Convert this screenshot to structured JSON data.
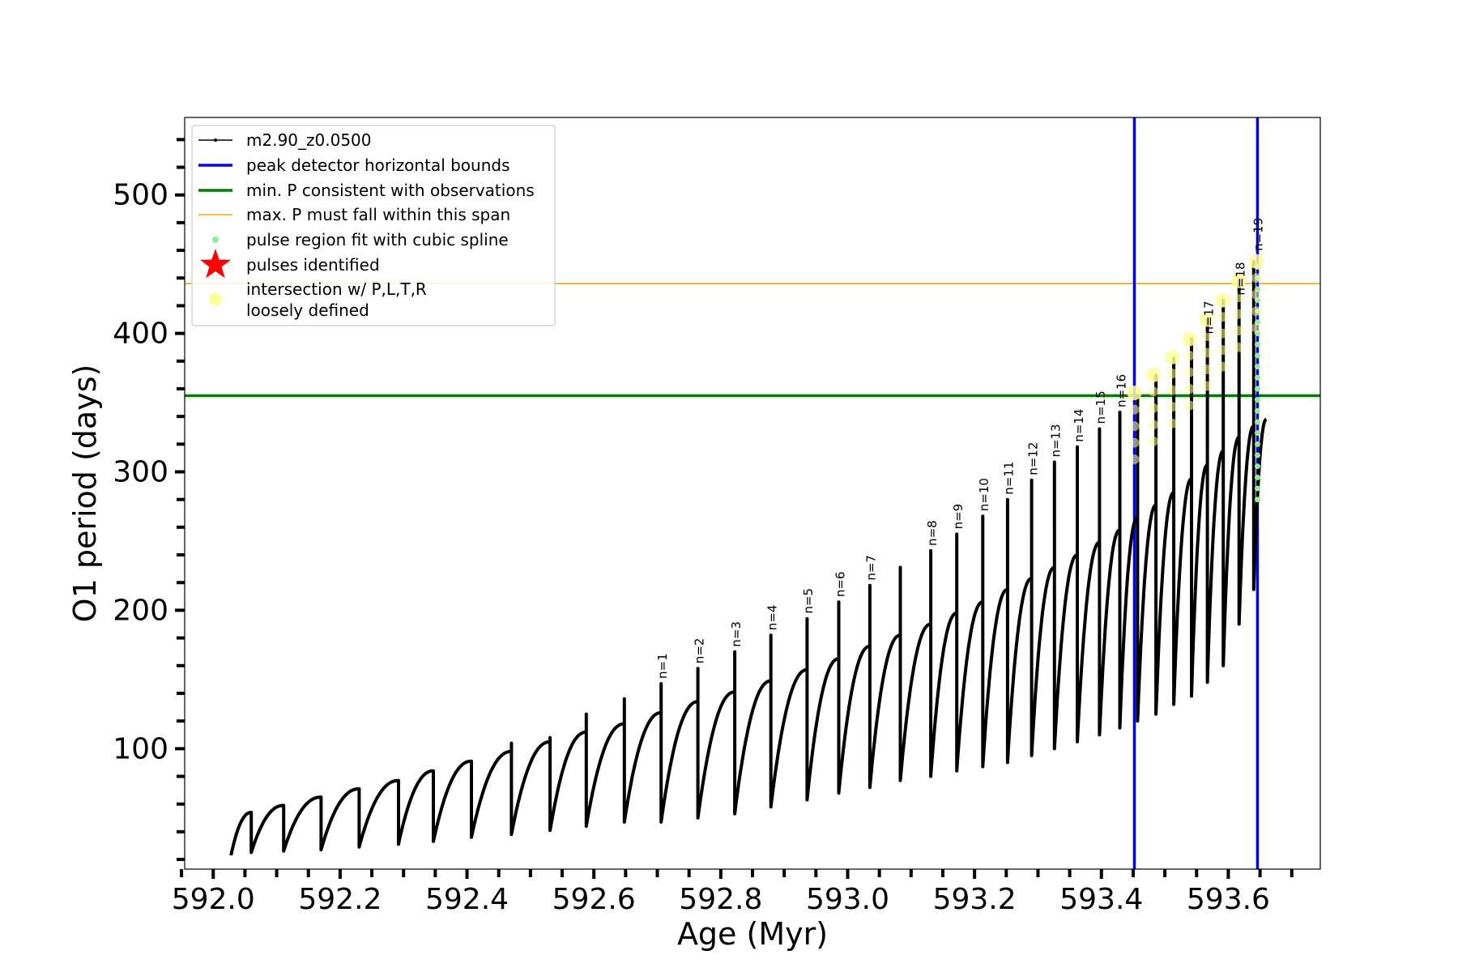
{
  "chart_data": {
    "type": "line",
    "title": "",
    "xlabel": "Age (Myr)",
    "ylabel": "O1 period (days)",
    "xlim": [
      591.955,
      593.745
    ],
    "ylim": [
      13,
      556
    ],
    "x_ticks": [
      592.0,
      592.2,
      592.4,
      592.6,
      592.8,
      593.0,
      593.2,
      593.4,
      593.6
    ],
    "x_tick_labels": [
      "592.0",
      "592.2",
      "592.4",
      "592.6",
      "592.8",
      "593.0",
      "593.2",
      "593.4",
      "593.6"
    ],
    "x_minor_ticks": [
      591.95,
      592.05,
      592.1,
      592.15,
      592.25,
      592.3,
      592.35,
      592.45,
      592.5,
      592.55,
      592.65,
      592.7,
      592.75,
      592.85,
      592.9,
      592.95,
      593.05,
      593.1,
      593.15,
      593.25,
      593.3,
      593.35,
      593.45,
      593.5,
      593.55,
      593.65,
      593.7
    ],
    "y_ticks": [
      100,
      200,
      300,
      400,
      500
    ],
    "y_tick_labels": [
      "100",
      "200",
      "300",
      "400",
      "500"
    ],
    "y_minor_ticks": [
      20,
      40,
      60,
      80,
      120,
      140,
      160,
      180,
      220,
      240,
      260,
      280,
      320,
      340,
      360,
      380,
      420,
      440,
      460,
      480,
      520,
      540
    ],
    "legend_position": "upper-left",
    "legend": [
      {
        "label": "m2.90_z0.0500",
        "kind": "line-marker",
        "color": "#000000"
      },
      {
        "label": "peak detector horizontal bounds",
        "kind": "line",
        "color": "#0000ff"
      },
      {
        "label": "min. P consistent with observations",
        "kind": "line",
        "color": "#008000"
      },
      {
        "label": "max. P must fall within this span",
        "kind": "line",
        "color": "#ffa500"
      },
      {
        "label": "pulse region fit with cubic spline",
        "kind": "dot",
        "color": "#90ee90"
      },
      {
        "label": "pulses identified",
        "kind": "star",
        "color": "#ff0000"
      },
      {
        "label": "intersection w/ P,L,T,R",
        "label2": "loosely defined",
        "kind": "circle",
        "color": "#ffff99"
      }
    ],
    "hlines": [
      {
        "name": "min. P consistent with observations",
        "y": 355,
        "color": "#008000"
      },
      {
        "name": "max. P must fall within this span",
        "y": 436,
        "color": "#ffa500"
      }
    ],
    "vlines": [
      {
        "name": "peak detector horizontal bounds",
        "x": 593.452,
        "color": "#0000ff"
      },
      {
        "name": "peak detector horizontal bounds",
        "x": 593.646,
        "color": "#0000ff"
      }
    ],
    "series": [
      {
        "name": "m2.90_z0.0500",
        "color": "#000000",
        "start": [
          592.028,
          23
        ],
        "cycles": [
          {
            "x_start": 592.028,
            "x_end": 592.06,
            "p_start": 23,
            "p_end": 54,
            "spike": 54
          },
          {
            "x_start": 592.06,
            "x_end": 592.111,
            "p_start": 25,
            "p_end": 59,
            "spike": 59
          },
          {
            "x_start": 592.111,
            "x_end": 592.17,
            "p_start": 26,
            "p_end": 65,
            "spike": 65
          },
          {
            "x_start": 592.17,
            "x_end": 592.23,
            "p_start": 27,
            "p_end": 71,
            "spike": 71
          },
          {
            "x_start": 592.23,
            "x_end": 592.292,
            "p_start": 29,
            "p_end": 77,
            "spike": 77
          },
          {
            "x_start": 592.292,
            "x_end": 592.347,
            "p_start": 31,
            "p_end": 84,
            "spike": 84
          },
          {
            "x_start": 592.347,
            "x_end": 592.407,
            "p_start": 33,
            "p_end": 91,
            "spike": 91
          },
          {
            "x_start": 592.407,
            "x_end": 592.47,
            "p_start": 36,
            "p_end": 98,
            "spike": 104
          },
          {
            "x_start": 592.47,
            "x_end": 592.531,
            "p_start": 38,
            "p_end": 105,
            "spike": 108
          },
          {
            "x_start": 592.531,
            "x_end": 592.588,
            "p_start": 41,
            "p_end": 112,
            "spike": 125
          },
          {
            "x_start": 592.588,
            "x_end": 592.648,
            "p_start": 44,
            "p_end": 118,
            "spike": 136
          },
          {
            "x_start": 592.648,
            "x_end": 592.706,
            "p_start": 47,
            "p_end": 126,
            "spike": 147
          },
          {
            "x_start": 592.706,
            "x_end": 592.764,
            "p_start": 47,
            "p_end": 134,
            "spike": 158
          },
          {
            "x_start": 592.764,
            "x_end": 592.822,
            "p_start": 50,
            "p_end": 141,
            "spike": 170
          },
          {
            "x_start": 592.822,
            "x_end": 592.879,
            "p_start": 53,
            "p_end": 149,
            "spike": 182
          },
          {
            "x_start": 592.879,
            "x_end": 592.936,
            "p_start": 58,
            "p_end": 157,
            "spike": 194
          },
          {
            "x_start": 592.936,
            "x_end": 592.986,
            "p_start": 63,
            "p_end": 165,
            "spike": 206
          },
          {
            "x_start": 592.986,
            "x_end": 593.035,
            "p_start": 68,
            "p_end": 174,
            "spike": 218
          },
          {
            "x_start": 593.035,
            "x_end": 593.083,
            "p_start": 72,
            "p_end": 182,
            "spike": 231
          },
          {
            "x_start": 593.083,
            "x_end": 593.131,
            "p_start": 77,
            "p_end": 190,
            "spike": 243
          },
          {
            "x_start": 593.131,
            "x_end": 593.172,
            "p_start": 80,
            "p_end": 198,
            "spike": 255
          },
          {
            "x_start": 593.172,
            "x_end": 593.213,
            "p_start": 84,
            "p_end": 206,
            "spike": 268
          },
          {
            "x_start": 593.213,
            "x_end": 593.252,
            "p_start": 87,
            "p_end": 215,
            "spike": 280
          },
          {
            "x_start": 593.252,
            "x_end": 593.29,
            "p_start": 90,
            "p_end": 223,
            "spike": 294
          },
          {
            "x_start": 593.29,
            "x_end": 593.326,
            "p_start": 95,
            "p_end": 231,
            "spike": 307
          },
          {
            "x_start": 593.326,
            "x_end": 593.362,
            "p_start": 100,
            "p_end": 240,
            "spike": 318
          },
          {
            "x_start": 593.362,
            "x_end": 593.397,
            "p_start": 105,
            "p_end": 249,
            "spike": 331
          },
          {
            "x_start": 593.397,
            "x_end": 593.429,
            "p_start": 110,
            "p_end": 258,
            "spike": 343
          },
          {
            "x_start": 593.429,
            "x_end": 593.457,
            "p_start": 115,
            "p_end": 267,
            "spike": 355
          },
          {
            "x_start": 593.457,
            "x_end": 593.486,
            "p_start": 120,
            "p_end": 276,
            "spike": 370
          },
          {
            "x_start": 593.486,
            "x_end": 593.514,
            "p_start": 125,
            "p_end": 285,
            "spike": 382
          },
          {
            "x_start": 593.514,
            "x_end": 593.542,
            "p_start": 132,
            "p_end": 295,
            "spike": 396
          },
          {
            "x_start": 593.542,
            "x_end": 593.567,
            "p_start": 138,
            "p_end": 305,
            "spike": 410
          },
          {
            "x_start": 593.567,
            "x_end": 593.592,
            "p_start": 148,
            "p_end": 315,
            "spike": 424
          },
          {
            "x_start": 593.592,
            "x_end": 593.617,
            "p_start": 160,
            "p_end": 325,
            "spike": 438
          },
          {
            "x_start": 593.617,
            "x_end": 593.64,
            "p_start": 190,
            "p_end": 333,
            "spike": 452
          },
          {
            "x_start": 593.64,
            "x_end": 593.66,
            "p_start": 215,
            "p_end": 338,
            "spike": null
          }
        ]
      }
    ],
    "spline_region": {
      "name": "pulse region fit with cubic spline",
      "color": "#90ee90",
      "x": 593.646,
      "y_min": 280,
      "y_max": 452
    },
    "intersection_points": {
      "name": "intersection w/ P,L,T,R loosely defined",
      "color": "#ffff99",
      "points": [
        [
          593.452,
          357
        ],
        [
          593.482,
          370
        ],
        [
          593.512,
          383
        ],
        [
          593.539,
          396
        ],
        [
          593.566,
          410
        ],
        [
          593.591,
          424
        ],
        [
          593.616,
          438
        ],
        [
          593.644,
          452
        ]
      ]
    },
    "annotations": [
      {
        "text": "n=1",
        "x": 592.707,
        "y": 147
      },
      {
        "text": "n=2",
        "x": 592.765,
        "y": 158
      },
      {
        "text": "n=3",
        "x": 592.823,
        "y": 170
      },
      {
        "text": "n=4",
        "x": 592.88,
        "y": 182
      },
      {
        "text": "n=5",
        "x": 592.937,
        "y": 194
      },
      {
        "text": "n=6",
        "x": 592.987,
        "y": 206
      },
      {
        "text": "n=7",
        "x": 593.036,
        "y": 218
      },
      {
        "text": "n=8",
        "x": 593.132,
        "y": 243
      },
      {
        "text": "n=9",
        "x": 593.173,
        "y": 255
      },
      {
        "text": "n=10",
        "x": 593.214,
        "y": 268
      },
      {
        "text": "n=11",
        "x": 593.253,
        "y": 280
      },
      {
        "text": "n=12",
        "x": 593.291,
        "y": 294
      },
      {
        "text": "n=13",
        "x": 593.327,
        "y": 307
      },
      {
        "text": "n=14",
        "x": 593.363,
        "y": 318
      },
      {
        "text": "n=15",
        "x": 593.398,
        "y": 331
      },
      {
        "text": "n=16",
        "x": 593.43,
        "y": 343
      },
      {
        "text": "n=17",
        "x": 593.568,
        "y": 396
      },
      {
        "text": "n=18",
        "x": 593.618,
        "y": 424
      },
      {
        "text": "n=19",
        "x": 593.646,
        "y": 456
      }
    ]
  }
}
